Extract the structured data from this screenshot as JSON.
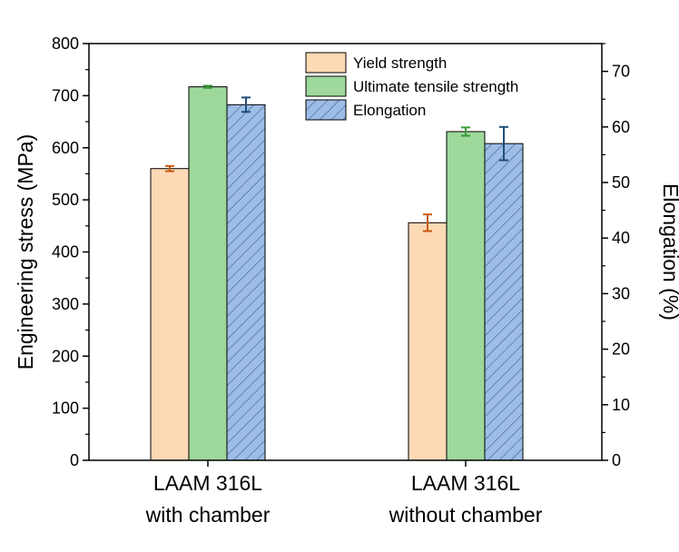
{
  "chart_data": {
    "type": "bar",
    "categories": [
      [
        "LAAM 316L",
        "with chamber"
      ],
      [
        "LAAM 316L",
        "without chamber"
      ]
    ],
    "ylabel": "Engineering stress (MPa)",
    "y2label": "Elongation (%)",
    "ylim": [
      0,
      800
    ],
    "y2lim": [
      0,
      75
    ],
    "yticks": [
      "0",
      "100",
      "200",
      "300",
      "400",
      "500",
      "600",
      "700",
      "800"
    ],
    "y2ticks": [
      "0",
      "10",
      "20",
      "30",
      "40",
      "50",
      "60",
      "70"
    ],
    "legend_position": "top-right",
    "grid": false,
    "series": [
      {
        "name": "Yield strength",
        "axis": "left",
        "color": "#fdd9b5",
        "edge": "#000000",
        "error_color": "#c65a11",
        "hatch": false,
        "values": [
          560,
          456
        ],
        "errors": [
          5,
          16
        ]
      },
      {
        "name": "Ultimate tensile strength",
        "axis": "left",
        "color": "#9ed89a",
        "edge": "#000000",
        "error_color": "#3a9a3a",
        "hatch": false,
        "values": [
          717,
          631
        ],
        "errors": [
          2,
          8
        ]
      },
      {
        "name": "Elongation",
        "axis": "right",
        "color": "#9dbde6",
        "edge": "#000000",
        "error_color": "#1f4e79",
        "hatch": true,
        "values": [
          64,
          57
        ],
        "errors": [
          1.3,
          3
        ]
      }
    ]
  }
}
